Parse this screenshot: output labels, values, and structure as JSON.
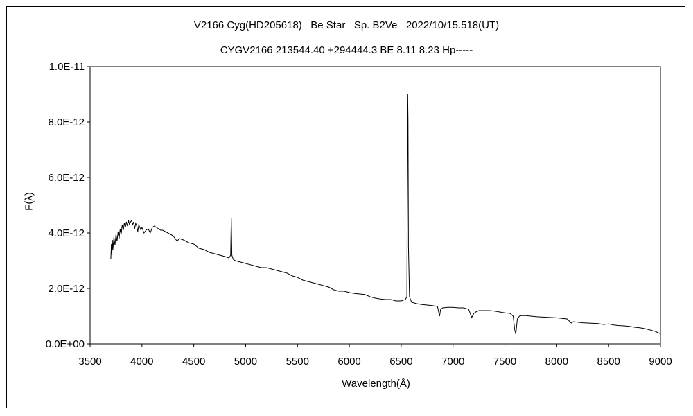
{
  "chart_data": {
    "type": "line",
    "title": "V2166 Cyg(HD205618)   Be Star   Sp. B2Ve   2022/10/15.518(UT)",
    "subtitle": "CYGV2166 213544.40 +294444.3 BE 8.11 8.23 Hp-----",
    "xlabel": "Wavelength(Å)",
    "ylabel": "F(λ)",
    "xlim": [
      3500,
      9000
    ],
    "ylim": [
      0,
      1e-11
    ],
    "x_ticks": [
      3500,
      4000,
      4500,
      5000,
      5500,
      6000,
      6500,
      7000,
      7500,
      8000,
      8500,
      9000
    ],
    "x_tick_labels": [
      "3500",
      "4000",
      "4500",
      "5000",
      "5500",
      "6000",
      "6500",
      "7000",
      "7500",
      "8000",
      "8500",
      "9000"
    ],
    "y_ticks": [
      0,
      2e-12,
      4e-12,
      6e-12,
      8e-12,
      1e-11
    ],
    "y_tick_labels": [
      "0.0E+00",
      "2.0E-12",
      "4.0E-12",
      "6.0E-12",
      "8.0E-12",
      "1.0E-11"
    ],
    "grid": false,
    "series": [
      {
        "color": "#000000",
        "x": [
          3700,
          3705,
          3710,
          3715,
          3720,
          3730,
          3740,
          3750,
          3760,
          3770,
          3780,
          3790,
          3800,
          3810,
          3820,
          3830,
          3840,
          3850,
          3860,
          3870,
          3880,
          3890,
          3900,
          3910,
          3920,
          3930,
          3940,
          3950,
          3960,
          3970,
          3980,
          3990,
          4000,
          4020,
          4040,
          4060,
          4080,
          4100,
          4120,
          4140,
          4160,
          4180,
          4200,
          4250,
          4300,
          4340,
          4360,
          4400,
          4450,
          4500,
          4550,
          4600,
          4650,
          4700,
          4750,
          4800,
          4840,
          4855,
          4861,
          4867,
          4880,
          4900,
          4950,
          5000,
          5050,
          5100,
          5150,
          5200,
          5250,
          5300,
          5350,
          5400,
          5450,
          5500,
          5550,
          5600,
          5650,
          5700,
          5750,
          5800,
          5850,
          5900,
          5950,
          6000,
          6050,
          6100,
          6150,
          6200,
          6250,
          6300,
          6350,
          6400,
          6450,
          6500,
          6540,
          6555,
          6560,
          6563,
          6566,
          6570,
          6580,
          6600,
          6650,
          6700,
          6750,
          6800,
          6850,
          6870,
          6880,
          6900,
          6950,
          7000,
          7050,
          7100,
          7150,
          7180,
          7200,
          7220,
          7250,
          7300,
          7350,
          7400,
          7450,
          7500,
          7550,
          7580,
          7595,
          7605,
          7620,
          7640,
          7660,
          7700,
          7750,
          7800,
          7850,
          7900,
          7950,
          8000,
          8050,
          8100,
          8140,
          8160,
          8200,
          8250,
          8300,
          8350,
          8400,
          8450,
          8500,
          8550,
          8600,
          8650,
          8700,
          8750,
          8800,
          8850,
          8900,
          8950,
          9000
        ],
        "y": [
          3.05e-12,
          3.6e-12,
          3.2e-12,
          3.75e-12,
          3.4e-12,
          3.85e-12,
          3.55e-12,
          3.95e-12,
          3.7e-12,
          4.05e-12,
          3.8e-12,
          4.15e-12,
          3.95e-12,
          4.3e-12,
          4.1e-12,
          4.35e-12,
          4.2e-12,
          4.4e-12,
          4.25e-12,
          4.45e-12,
          4.3e-12,
          4.4e-12,
          4.45e-12,
          4.3e-12,
          4.4e-12,
          4.15e-12,
          4.35e-12,
          4.25e-12,
          4.05e-12,
          4.3e-12,
          4.2e-12,
          4.1e-12,
          4.2e-12,
          4e-12,
          4.1e-12,
          4.15e-12,
          4e-12,
          4.2e-12,
          4.25e-12,
          4.2e-12,
          4.15e-12,
          4.1e-12,
          4.1e-12,
          4e-12,
          3.9e-12,
          3.7e-12,
          3.8e-12,
          3.75e-12,
          3.65e-12,
          3.6e-12,
          3.45e-12,
          3.4e-12,
          3.3e-12,
          3.25e-12,
          3.2e-12,
          3.15e-12,
          3.1e-12,
          3.2e-12,
          4.55e-12,
          3.2e-12,
          3.05e-12,
          3e-12,
          2.95e-12,
          2.9e-12,
          2.85e-12,
          2.8e-12,
          2.75e-12,
          2.75e-12,
          2.7e-12,
          2.65e-12,
          2.6e-12,
          2.55e-12,
          2.45e-12,
          2.4e-12,
          2.3e-12,
          2.25e-12,
          2.2e-12,
          2.15e-12,
          2.1e-12,
          2.05e-12,
          1.95e-12,
          1.9e-12,
          1.9e-12,
          1.85e-12,
          1.82e-12,
          1.8e-12,
          1.78e-12,
          1.7e-12,
          1.65e-12,
          1.62e-12,
          1.6e-12,
          1.6e-12,
          1.55e-12,
          1.55e-12,
          1.6e-12,
          1.7e-12,
          6.5e-12,
          9e-12,
          8e-12,
          3.5e-12,
          1.7e-12,
          1.5e-12,
          1.45e-12,
          1.42e-12,
          1.4e-12,
          1.38e-12,
          1.35e-12,
          1e-12,
          1.25e-12,
          1.3e-12,
          1.32e-12,
          1.32e-12,
          1.3e-12,
          1.3e-12,
          1.25e-12,
          9.5e-13,
          1.1e-12,
          1.15e-12,
          1.2e-12,
          1.2e-12,
          1.2e-12,
          1.18e-12,
          1.15e-12,
          1.12e-12,
          1.1e-12,
          1e-12,
          5e-13,
          3.5e-13,
          9e-13,
          1e-12,
          1.02e-12,
          1.02e-12,
          1e-12,
          9.8e-13,
          9.7e-13,
          9.6e-13,
          9.5e-13,
          9.4e-13,
          9.2e-13,
          9e-13,
          7.5e-13,
          8e-13,
          7.8e-13,
          7.6e-13,
          7.5e-13,
          7.4e-13,
          7.3e-13,
          7e-13,
          7.2e-13,
          6.8e-13,
          6.6e-13,
          6.5e-13,
          6.3e-13,
          6e-13,
          5.8e-13,
          5.5e-13,
          5e-13,
          4.5e-13,
          3.6e-13
        ]
      }
    ]
  }
}
